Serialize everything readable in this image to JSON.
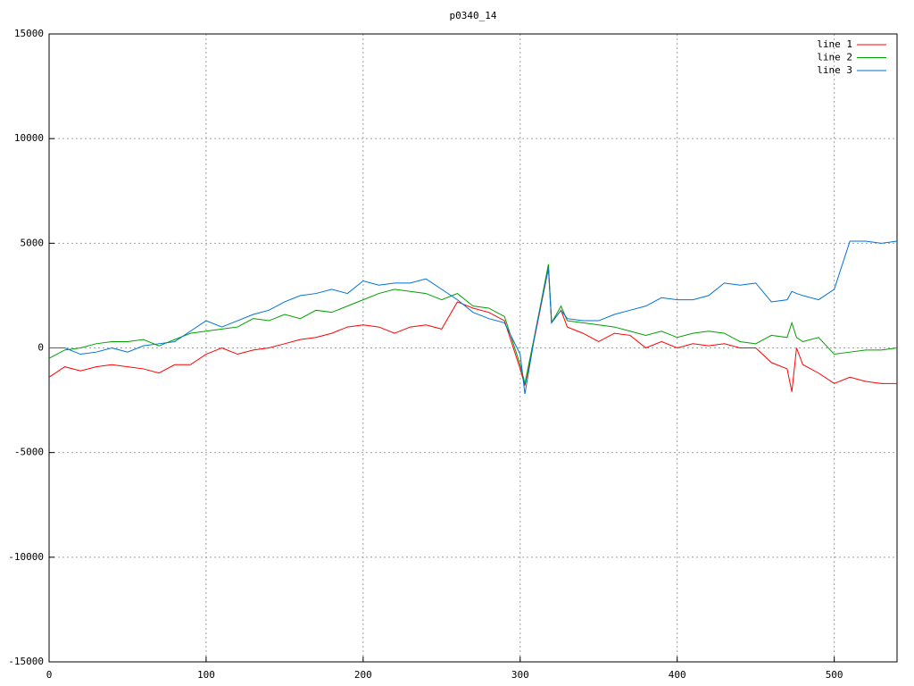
{
  "chart_data": {
    "type": "line",
    "title": "p0340_14",
    "x": [
      0,
      10,
      20,
      30,
      40,
      50,
      60,
      70,
      80,
      90,
      100,
      110,
      120,
      130,
      140,
      150,
      160,
      170,
      180,
      190,
      200,
      210,
      220,
      230,
      240,
      250,
      260,
      270,
      280,
      290,
      300,
      303,
      310,
      318,
      320,
      326,
      330,
      340,
      350,
      360,
      370,
      380,
      390,
      400,
      410,
      420,
      430,
      440,
      450,
      460,
      470,
      473,
      476,
      480,
      490,
      500,
      510,
      520,
      530,
      540
    ],
    "series": [
      {
        "name": "line 1",
        "color": "#ff0000",
        "values": [
          -1400,
          -900,
          -1100,
          -900,
          -800,
          -900,
          -1000,
          -1200,
          -800,
          -800,
          -300,
          0,
          -300,
          -100,
          0,
          200,
          400,
          500,
          700,
          1000,
          1100,
          1000,
          700,
          1000,
          1100,
          900,
          2200,
          1900,
          1700,
          1300,
          -1000,
          -1800,
          800,
          3800,
          1200,
          1800,
          1000,
          700,
          300,
          700,
          600,
          0,
          300,
          0,
          200,
          100,
          200,
          0,
          0,
          -700,
          -1000,
          -2100,
          0,
          -800,
          -1200,
          -1700,
          -1400,
          -1600,
          -1700,
          -1700
        ]
      },
      {
        "name": "line 2",
        "color": "#00a000",
        "values": [
          -500,
          -100,
          0,
          200,
          300,
          300,
          400,
          100,
          400,
          700,
          800,
          900,
          1000,
          1400,
          1300,
          1600,
          1400,
          1800,
          1700,
          2000,
          2300,
          2600,
          2800,
          2700,
          2600,
          2300,
          2600,
          2000,
          1900,
          1500,
          -800,
          -1700,
          900,
          4000,
          1200,
          2000,
          1300,
          1200,
          1100,
          1000,
          800,
          600,
          800,
          500,
          700,
          800,
          700,
          300,
          200,
          600,
          500,
          1200,
          500,
          300,
          500,
          -300,
          -200,
          -100,
          -100,
          0
        ]
      },
      {
        "name": "line 3",
        "color": "#0072d8",
        "values": [
          0,
          0,
          -300,
          -200,
          0,
          -200,
          100,
          200,
          300,
          800,
          1300,
          1000,
          1300,
          1600,
          1800,
          2200,
          2500,
          2600,
          2800,
          2600,
          3200,
          3000,
          3100,
          3100,
          3300,
          2800,
          2300,
          1700,
          1400,
          1200,
          -300,
          -2200,
          900,
          3800,
          1200,
          1800,
          1400,
          1300,
          1300,
          1600,
          1800,
          2000,
          2400,
          2300,
          2300,
          2500,
          3100,
          3000,
          3100,
          2200,
          2300,
          2700,
          2600,
          2500,
          2300,
          2800,
          5100,
          5100,
          5000,
          5100
        ]
      }
    ],
    "xlim": [
      0,
      540
    ],
    "xticks": [
      0,
      100,
      200,
      300,
      400,
      500
    ],
    "ylim": [
      -15000,
      15000
    ],
    "yticks": [
      -15000,
      -10000,
      -5000,
      0,
      5000,
      10000,
      15000
    ],
    "grid": true,
    "legend": "top-right"
  }
}
